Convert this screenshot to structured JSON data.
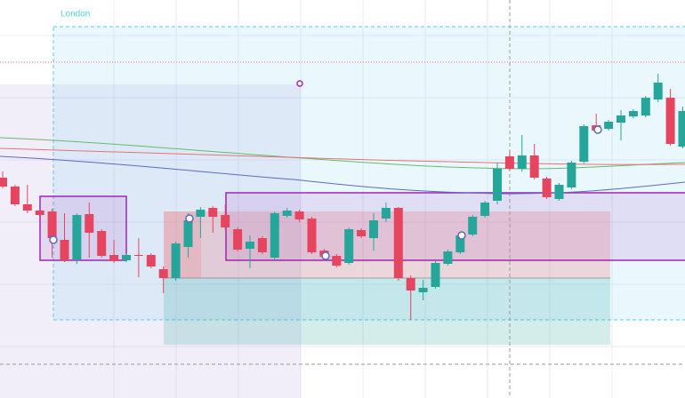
{
  "chart_data": {
    "type": "candlestick",
    "session_label": "London",
    "ylim": [
      0,
      448
    ],
    "up_color": "#26a69a",
    "down_color": "#e5455f",
    "open": [
      248,
      238,
      218,
      211,
      210,
      178,
      156,
      207,
      188,
      161,
      155,
      161,
      161,
      145,
      135,
      170,
      204,
      214,
      206,
      190,
      168,
      180,
      158,
      205,
      210,
      202,
      166,
      160,
      152,
      189,
      180,
      202,
      214,
      135,
      119,
      125,
      151,
      164,
      184,
      205,
      222,
      272,
      258,
      273,
      247,
      224,
      237,
      266,
      307,
      303,
      310,
      317,
      318,
      336,
      338,
      283
    ],
    "high": [
      255,
      240,
      240,
      213,
      213,
      208,
      208,
      220,
      190,
      178,
      163,
      180,
      163,
      148,
      176,
      208,
      215,
      216,
      218,
      192,
      183,
      182,
      210,
      214,
      212,
      204,
      168,
      162,
      192,
      191,
      208,
      220,
      215,
      138,
      133,
      154,
      167,
      186,
      206,
      222,
      265,
      278,
      296,
      286,
      249,
      242,
      267,
      308,
      320,
      313,
      324,
      325,
      340,
      365,
      348,
      328
    ],
    "low": [
      236,
      216,
      208,
      205,
      158,
      153,
      151,
      158,
      158,
      152,
      153,
      136,
      146,
      118,
      132,
      158,
      180,
      186,
      190,
      165,
      146,
      162,
      156,
      203,
      198,
      162,
      157,
      147,
      150,
      180,
      166,
      198,
      132,
      88,
      110,
      123,
      149,
      162,
      182,
      203,
      218,
      256,
      255,
      246,
      224,
      222,
      235,
      264,
      298,
      301,
      290,
      315,
      316,
      333,
      284,
      281
    ],
    "close": [
      238,
      218,
      211,
      206,
      180,
      155,
      206,
      186,
      160,
      154,
      161,
      160,
      148,
      135,
      174,
      200,
      212,
      204,
      192,
      167,
      176,
      164,
      208,
      211,
      201,
      164,
      159,
      149,
      190,
      182,
      200,
      214,
      135,
      121,
      124,
      152,
      165,
      183,
      204,
      220,
      258,
      258,
      273,
      248,
      226,
      240,
      265,
      306,
      301,
      311,
      318,
      323,
      338,
      355,
      286,
      323
    ]
  }
}
